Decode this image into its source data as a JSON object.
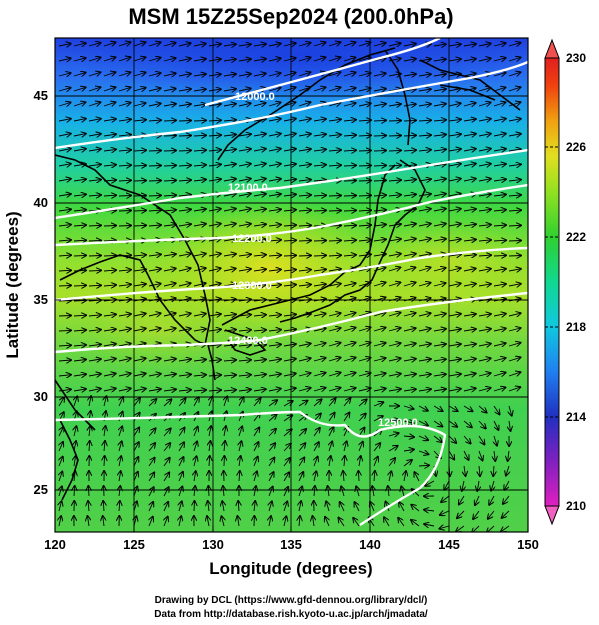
{
  "title": "MSM 15Z25Sep2024 (200.0hPa)",
  "x_axis": {
    "label": "Longitude (degrees)",
    "range": [
      120,
      150
    ],
    "ticks": [
      "120",
      "125",
      "130",
      "135",
      "140",
      "145",
      "150"
    ]
  },
  "y_axis": {
    "label": "Latitude  (degrees)",
    "range": [
      22.4,
      47.6
    ],
    "ticks": [
      "25",
      "30",
      "35",
      "40",
      "45"
    ]
  },
  "colorbar": {
    "range": [
      210,
      230
    ],
    "ticks": [
      "210",
      "214",
      "218",
      "222",
      "226",
      "230"
    ],
    "colors": [
      "#e020c0",
      "#8020c0",
      "#2030c0",
      "#2080f0",
      "#10c8e0",
      "#10d890",
      "#30d030",
      "#90e020",
      "#e0e020",
      "#f0a010",
      "#f04010",
      "#e02020"
    ]
  },
  "contour_labels": {
    "c12000": "12000.0",
    "c12100": "12100.0",
    "c12200": "12200.0",
    "c12300": "12300.0",
    "c12400": "12400.0",
    "c12500": "12500.0"
  },
  "credits": {
    "line1": "Drawing by DCL (https://www.gfd-dennou.org/library/dcl/)",
    "line2": "Data from http://database.rish.kyoto-u.ac.jp/arch/jmadata/"
  },
  "colors": {
    "north_blue": "#2a58e0",
    "mid_green": "#40d040",
    "yellow_core": "#d8e020",
    "south_green": "#30d050"
  }
}
